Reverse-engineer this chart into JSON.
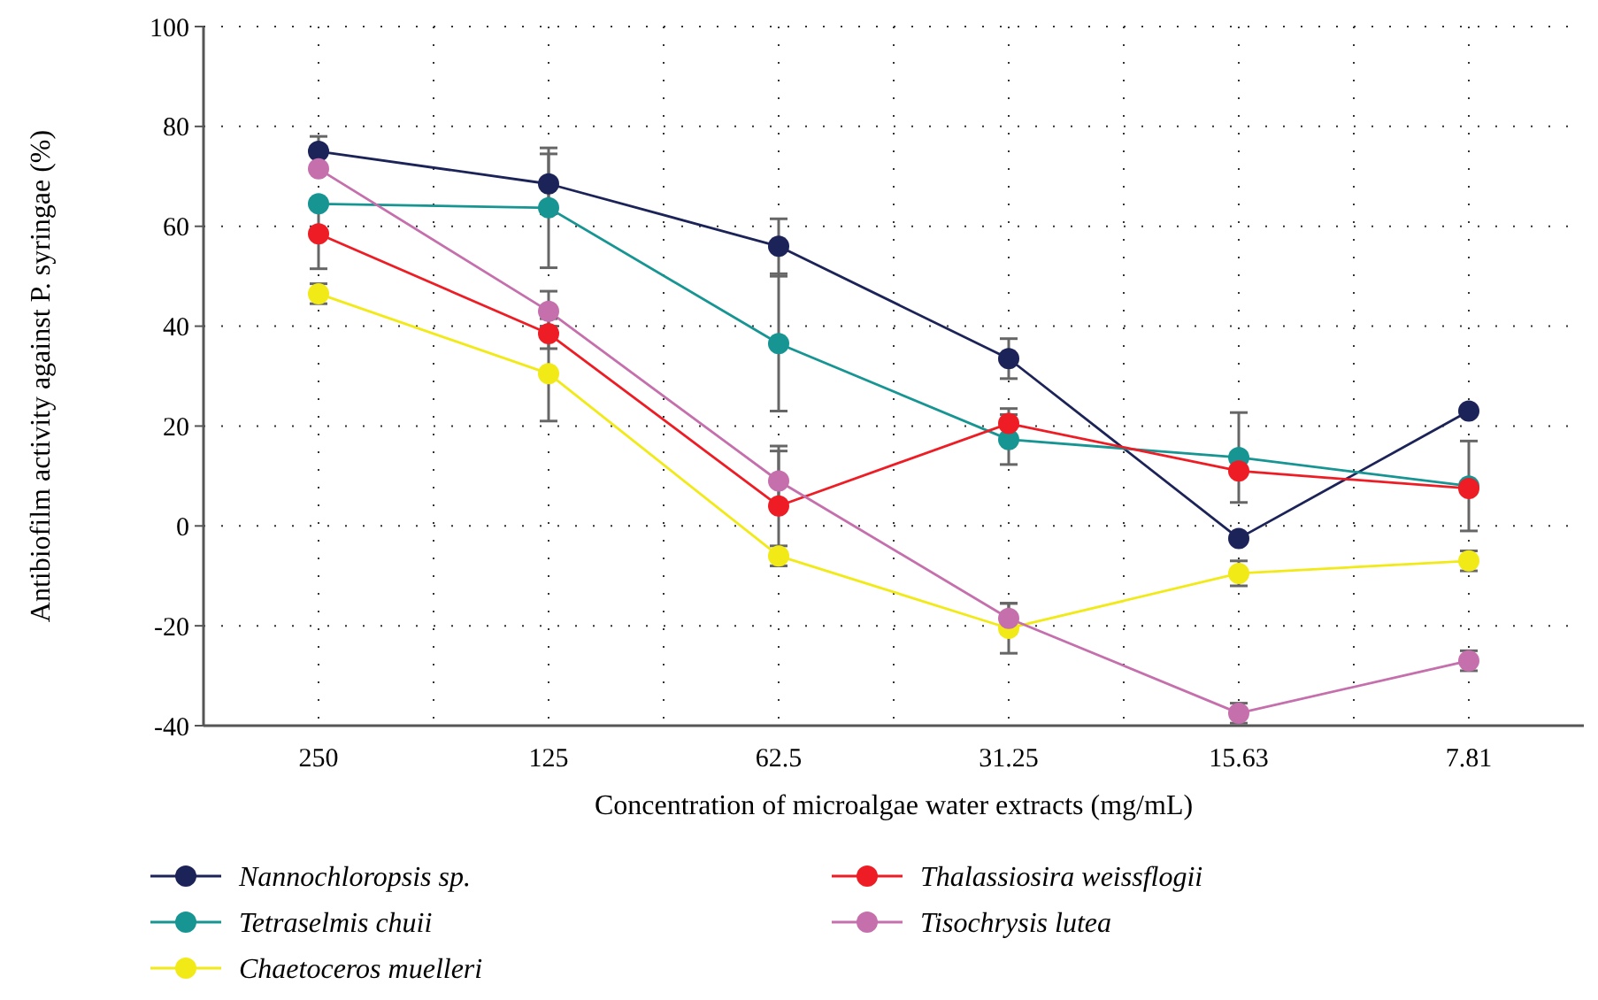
{
  "chart_data": {
    "type": "line",
    "xlabel": "Concentration of microalgae water extracts (mg/mL)",
    "ylabel": "Antibiofilm activity against P. syringae (%)",
    "categories": [
      "250",
      "125",
      "62.5",
      "31.25",
      "15.63",
      "7.81"
    ],
    "ylim": [
      -40,
      100
    ],
    "yticks": [
      -40,
      -20,
      0,
      20,
      40,
      60,
      80,
      100
    ],
    "grid": true,
    "legend": "bottom",
    "marker": "circle",
    "line_style": "solid",
    "series": [
      {
        "name": "Nannochloropsis sp.",
        "color": "#1b2358",
        "values": [
          75,
          68.5,
          56,
          33.5,
          -2.5,
          23
        ],
        "errors": [
          3,
          6,
          5.5,
          4,
          null,
          null
        ]
      },
      {
        "name": "Tetraselmis chuii",
        "color": "#169593",
        "values": [
          64.5,
          63.7,
          36.5,
          17.3,
          13.7,
          8
        ],
        "errors": [
          null,
          12,
          13.5,
          5,
          9,
          9
        ]
      },
      {
        "name": "Chaetoceros muelleri",
        "color": "#f2ea16",
        "values": [
          46.5,
          30.5,
          -6,
          -20.5,
          -9.5,
          -7
        ],
        "errors": [
          2,
          9.5,
          2,
          5,
          2.5,
          2
        ]
      },
      {
        "name": "Thalassiosira weissflogii",
        "color": "#ee1c24",
        "values": [
          58.5,
          38.5,
          4,
          20.5,
          11,
          7.5
        ],
        "errors": [
          7,
          3,
          12,
          3,
          null,
          null
        ]
      },
      {
        "name": "Tisochrysis lutea",
        "color": "#c56fad",
        "values": [
          71.5,
          43,
          9,
          -18.5,
          -37.5,
          -27
        ],
        "errors": [
          null,
          4,
          6,
          3,
          2,
          2
        ]
      }
    ]
  }
}
